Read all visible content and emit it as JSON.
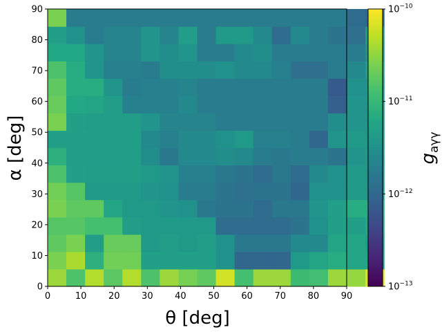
{
  "chart_data": {
    "type": "heatmap",
    "xlabel": "θ [deg]",
    "ylabel": "α [deg]",
    "colorbar_label": "g",
    "colorbar_label_sub": "aγγ",
    "xlim": [
      0,
      90
    ],
    "ylim": [
      0,
      90
    ],
    "x_ticks": [
      "0",
      "10",
      "20",
      "30",
      "40",
      "50",
      "60",
      "70",
      "80",
      "90"
    ],
    "y_ticks": [
      "0",
      "10",
      "20",
      "30",
      "40",
      "50",
      "60",
      "70",
      "80",
      "90"
    ],
    "colorbar_scale": "log",
    "colorbar_range": [
      1e-13,
      1e-10
    ],
    "colorbar_ticks": [
      {
        "base": "10",
        "exp": "−13"
      },
      {
        "base": "10",
        "exp": "−12"
      },
      {
        "base": "10",
        "exp": "−11"
      },
      {
        "base": "10",
        "exp": "−10"
      }
    ],
    "colormap": "viridis",
    "grid_rows": 16,
    "grid_cols": 18,
    "cell_size_deg": 5.625,
    "z_log10": [
      [
        -10.45,
        -10.85,
        -10.35,
        -10.78,
        -10.35,
        -10.85,
        -10.45,
        -10.62,
        -10.75,
        -10.2,
        -10.9,
        -10.45,
        -10.45,
        -10.95,
        -10.92,
        -10.45,
        -10.48,
        -10.15
      ],
      [
        -10.6,
        -10.38,
        -11.1,
        -10.65,
        -10.65,
        -11.3,
        -11.3,
        -11.3,
        -11.3,
        -11.5,
        -12.0,
        -12.0,
        -12.0,
        -11.4,
        -11.25,
        -11.15,
        -11.25,
        -11.25
      ],
      [
        -10.75,
        -10.6,
        -11.35,
        -10.7,
        -10.7,
        -11.4,
        -11.35,
        -11.4,
        -11.35,
        -11.5,
        -11.8,
        -11.8,
        -11.8,
        -11.6,
        -11.6,
        -11.25,
        -11.25,
        -11.3
      ],
      [
        -10.8,
        -10.8,
        -10.9,
        -10.9,
        -11.35,
        -11.4,
        -11.4,
        -11.4,
        -11.4,
        -11.95,
        -11.95,
        -11.95,
        -11.95,
        -11.85,
        -11.5,
        -11.3,
        -11.3,
        -11.2
      ],
      [
        -10.6,
        -10.75,
        -10.75,
        -11.25,
        -11.4,
        -11.4,
        -11.45,
        -11.5,
        -11.8,
        -11.85,
        -11.85,
        -11.95,
        -11.8,
        -11.8,
        -11.45,
        -11.3,
        -11.15,
        -11.15
      ],
      [
        -10.65,
        -10.8,
        -11.4,
        -11.4,
        -11.4,
        -11.45,
        -11.5,
        -11.75,
        -11.75,
        -11.85,
        -11.9,
        -11.85,
        -11.85,
        -12.0,
        -11.5,
        -11.5,
        -11.4,
        -11.4
      ],
      [
        -10.85,
        -11.3,
        -11.35,
        -11.35,
        -11.3,
        -11.4,
        -11.45,
        -11.7,
        -11.7,
        -11.8,
        -11.85,
        -11.95,
        -11.8,
        -11.95,
        -11.6,
        -11.5,
        -11.4,
        -11.4
      ],
      [
        -11.1,
        -11.35,
        -11.35,
        -11.35,
        -11.35,
        -11.55,
        -11.8,
        -11.6,
        -11.6,
        -11.55,
        -11.6,
        -11.75,
        -11.8,
        -11.75,
        -11.75,
        -11.85,
        -11.45,
        -11.4
      ],
      [
        -11.3,
        -11.3,
        -11.3,
        -11.3,
        -11.3,
        -11.6,
        -11.7,
        -11.6,
        -11.6,
        -11.5,
        -11.4,
        -11.7,
        -11.7,
        -11.75,
        -12.0,
        -11.45,
        -11.4,
        -11.4
      ],
      [
        -10.6,
        -11.3,
        -11.35,
        -11.35,
        -11.35,
        -11.45,
        -11.65,
        -11.65,
        -11.65,
        -11.75,
        -11.75,
        -11.75,
        -11.75,
        -11.75,
        -11.75,
        -11.55,
        -11.45,
        -11.45
      ],
      [
        -10.7,
        -11.2,
        -11.25,
        -11.35,
        -11.7,
        -11.7,
        -11.7,
        -11.6,
        -11.75,
        -11.75,
        -11.75,
        -11.75,
        -11.75,
        -11.75,
        -11.75,
        -12.1,
        -11.45,
        -11.45
      ],
      [
        -10.75,
        -11.15,
        -11.15,
        -11.45,
        -11.75,
        -11.7,
        -11.7,
        -11.65,
        -11.75,
        -11.75,
        -11.75,
        -11.75,
        -11.75,
        -11.75,
        -11.75,
        -12.15,
        -11.5,
        -11.45
      ],
      [
        -10.85,
        -11.15,
        -11.45,
        -11.7,
        -11.7,
        -11.75,
        -11.55,
        -11.55,
        -11.55,
        -11.5,
        -11.6,
        -11.6,
        -11.7,
        -11.9,
        -11.9,
        -11.75,
        -11.6,
        -11.35
      ],
      [
        -11.2,
        -11.2,
        -11.45,
        -11.65,
        -11.65,
        -11.45,
        -11.55,
        -11.45,
        -11.75,
        -11.75,
        -11.6,
        -11.55,
        -11.75,
        -11.75,
        -11.75,
        -11.75,
        -11.75,
        -11.5
      ],
      [
        -11.3,
        -11.5,
        -11.75,
        -11.65,
        -11.65,
        -11.45,
        -11.65,
        -11.35,
        -11.75,
        -11.4,
        -11.4,
        -11.6,
        -11.95,
        -11.6,
        -11.75,
        -11.85,
        -11.9,
        -11.4
      ],
      [
        -10.6,
        -11.75,
        -11.75,
        -11.75,
        -11.75,
        -11.75,
        -11.75,
        -11.75,
        -11.75,
        -11.75,
        -11.75,
        -11.75,
        -11.75,
        -11.75,
        -11.75,
        -11.75,
        -11.95,
        -12.0
      ]
    ]
  }
}
